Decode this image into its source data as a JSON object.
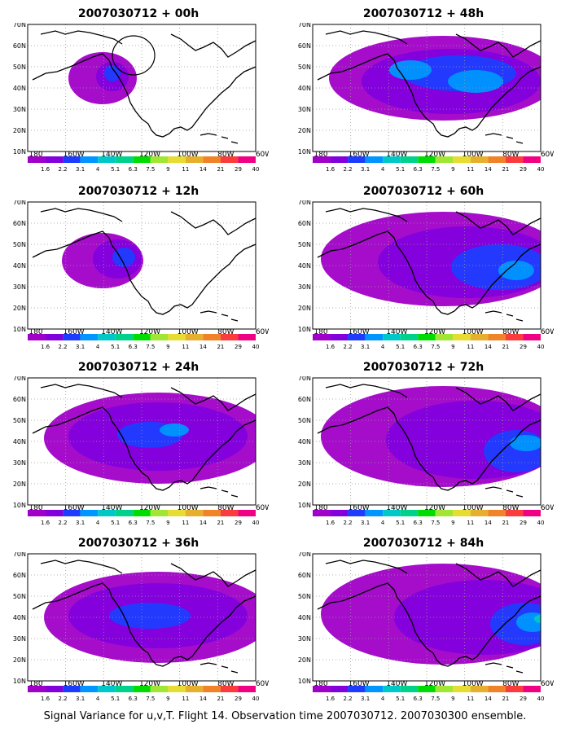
{
  "figure": {
    "caption": "Signal Variance for u,v,T. Flight 14. Observation time 2007030712. 2007030300 ensemble."
  },
  "axes": {
    "lat_labels": [
      "10N",
      "20N",
      "30N",
      "40N",
      "50N",
      "60N",
      "70N"
    ],
    "lon_labels": [
      "180",
      "160W",
      "140W",
      "120W",
      "100W",
      "80W",
      "60W"
    ]
  },
  "colorbar": {
    "labels": [
      "1.6",
      "2.2",
      "3.1",
      "4",
      "5.1",
      "6.3",
      "7.5",
      "9",
      "11",
      "14",
      "21",
      "29",
      "40"
    ],
    "colors": [
      "#a000c8",
      "#8200dc",
      "#1e3cff",
      "#0096ff",
      "#00c8c8",
      "#00d28c",
      "#00dc00",
      "#a0e632",
      "#e6dc32",
      "#e6af2d",
      "#f08228",
      "#fa3c3c",
      "#f00082"
    ]
  },
  "panels": [
    {
      "title": "2007030712 + 00h"
    },
    {
      "title": "2007030712 + 48h"
    },
    {
      "title": "2007030712 + 12h"
    },
    {
      "title": "2007030712 + 60h"
    },
    {
      "title": "2007030712 + 24h"
    },
    {
      "title": "2007030712 + 72h"
    },
    {
      "title": "2007030712 + 36h"
    },
    {
      "title": "2007030712 + 84h"
    }
  ]
}
